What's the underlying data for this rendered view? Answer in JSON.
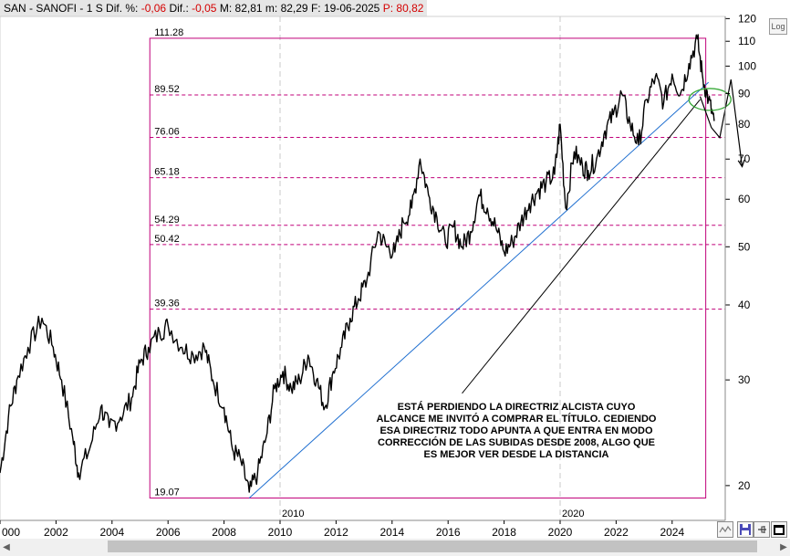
{
  "header": {
    "ticker": "SAN - SANOFI -",
    "period": "1 S",
    "pct_label": "Dif. %:",
    "pct_value": "-0,06",
    "dif_label": "Dif.:",
    "dif_value": "-0,05",
    "max_label": "M:",
    "max_value": "82,81",
    "min_label": "m:",
    "min_value": "82,29",
    "date_label": "F:",
    "date_value": "19-06-2025",
    "price_label": "P:",
    "price_value": "80,82"
  },
  "log_button": "Log",
  "annotation": "ESTÁ PERDIENDO LA DIRECTRIZ ALCISTA CUYO ALCANCE ME INVITÓ A COMPRAR EL TÍTULO. CEDIENDO ESA DIRECTRIZ TODO APUNTA A QUE ENTRA EN MODO CORRECCIÓN DE LAS SUBIDAS DESDE 2008, ALGO QUE ES MEJOR VER DESDE LA DISTANCIA",
  "colors": {
    "price": "#000000",
    "fib": "#c0007a",
    "trend": "#1f6fd0",
    "ellipse": "#3aaa3a",
    "header_negative": "#d40000"
  },
  "chart_data": {
    "type": "line",
    "scale": "log",
    "ylim": [
      17.5,
      121
    ],
    "xlim": [
      2000.0,
      2026.5
    ],
    "y_ticks": [
      20,
      30,
      40,
      50,
      60,
      70,
      80,
      90,
      100,
      110,
      120
    ],
    "x_ticks": [
      "000",
      "2002",
      "2004",
      "2006",
      "2008",
      "2010",
      "2012",
      "2014",
      "2016",
      "2018",
      "2020",
      "2022",
      "2024"
    ],
    "x_tick_years": [
      2000,
      2002,
      2004,
      2006,
      2008,
      2010,
      2012,
      2014,
      2016,
      2018,
      2020,
      2022,
      2024
    ],
    "decade_labels": [
      "2010",
      "2020"
    ],
    "decade_years": [
      2010,
      2020
    ],
    "fib_levels": [
      {
        "value": 111.28,
        "label": "111.28"
      },
      {
        "value": 89.52,
        "label": "89.52"
      },
      {
        "value": 76.06,
        "label": "76.06"
      },
      {
        "value": 65.18,
        "label": "65.18"
      },
      {
        "value": 54.29,
        "label": "54.29"
      },
      {
        "value": 50.42,
        "label": "50.42"
      },
      {
        "value": 39.36,
        "label": "39.36"
      },
      {
        "value": 19.07,
        "label": "19.07"
      }
    ],
    "fib_box": {
      "x_start": 2005.35,
      "x_end": 2025.2
    },
    "series": [
      {
        "x": [
          2000.0,
          2000.3,
          2000.6,
          2001.0,
          2001.5,
          2001.9,
          2002.2,
          2002.6,
          2002.8,
          2003.2,
          2003.6,
          2003.9,
          2004.3,
          2004.7,
          2005.0,
          2005.3,
          2005.7,
          2006.0,
          2006.5,
          2006.9,
          2007.3,
          2007.6,
          2008.0,
          2008.3,
          2008.6,
          2008.9,
          2009.2,
          2009.5,
          2009.8,
          2010.1,
          2010.4,
          2010.7,
          2011.0,
          2011.3,
          2011.6,
          2011.9,
          2012.2,
          2012.5,
          2012.8,
          2013.1,
          2013.5,
          2013.8,
          2014.1,
          2014.4,
          2014.7,
          2015.0,
          2015.3,
          2015.6,
          2015.9,
          2016.2,
          2016.5,
          2016.8,
          2017.1,
          2017.4,
          2017.7,
          2018.0,
          2018.3,
          2018.6,
          2018.9,
          2019.2,
          2019.5,
          2019.8,
          2020.0,
          2020.2,
          2020.5,
          2020.8,
          2021.0,
          2021.3,
          2021.6,
          2021.9,
          2022.2,
          2022.5,
          2022.8,
          2023.1,
          2023.4,
          2023.7,
          2024.0,
          2024.3,
          2024.6,
          2024.9,
          2025.1,
          2025.3,
          2025.5
        ],
        "y": [
          21,
          26,
          30,
          34,
          38,
          34,
          30,
          24,
          21,
          23,
          27,
          25,
          26,
          28,
          32,
          34,
          36,
          37,
          34,
          33,
          34,
          30,
          27,
          23,
          22,
          19.5,
          21,
          24,
          29,
          31,
          29,
          30,
          33,
          30,
          27,
          31,
          34,
          38,
          41,
          44,
          53,
          50,
          49,
          55,
          58,
          70,
          61,
          56,
          51,
          54,
          50,
          53,
          61,
          58,
          54,
          49,
          51,
          55,
          59,
          62,
          64,
          66,
          80,
          58,
          72,
          68,
          67,
          70,
          78,
          83,
          90,
          80,
          74,
          88,
          96,
          87,
          97,
          90,
          101,
          111,
          95,
          88,
          81
        ]
      }
    ],
    "trendline": {
      "x1": 2008.9,
      "y1": 19.07,
      "x2": 2025.3,
      "y2": 94
    },
    "arrow_line": {
      "x1": 2016.5,
      "y1": 28.5,
      "x2": 2025.0,
      "y2": 88
    },
    "projection": {
      "x": [
        2025.0,
        2025.4,
        2025.7,
        2026.1,
        2026.5
      ],
      "y": [
        89,
        79,
        76,
        95,
        68
      ]
    },
    "ellipse": {
      "cx": 2025.35,
      "cy": 88,
      "rx_years": 0.75,
      "ry_value": 2.5
    }
  }
}
